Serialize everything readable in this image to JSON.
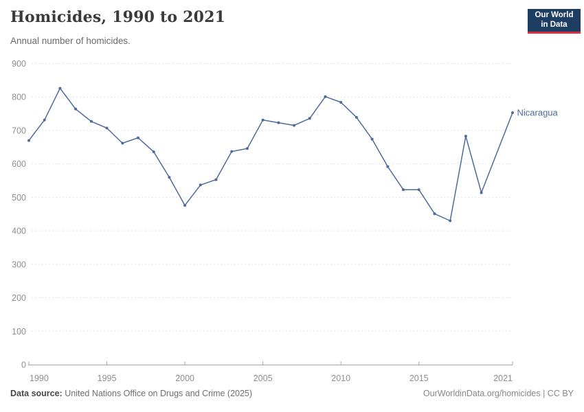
{
  "header": {
    "title": "Homicides, 1990 to 2021",
    "subtitle": "Annual number of homicides.",
    "logo": {
      "line1": "Our World",
      "line2": "in Data",
      "bg_color": "#1d3d63",
      "accent_color": "#e02c3f"
    }
  },
  "chart_data": {
    "type": "line",
    "title": "Homicides, 1990 to 2021",
    "subtitle": "Annual number of homicides.",
    "xlabel": "",
    "ylabel": "",
    "xlim": [
      1990,
      2021
    ],
    "ylim": [
      0,
      900
    ],
    "x_ticks": [
      1990,
      1995,
      2000,
      2005,
      2010,
      2015,
      2021
    ],
    "y_ticks": [
      0,
      100,
      200,
      300,
      400,
      500,
      600,
      700,
      800,
      900
    ],
    "grid": "horizontal-dashed",
    "legend_position": "end-of-line-label",
    "series": [
      {
        "name": "Nicaragua",
        "color": "#4C6A9C",
        "markers": true,
        "note": "no data for 2020; line connects 2019 to 2021",
        "points": [
          [
            1990,
            670
          ],
          [
            1991,
            731
          ],
          [
            1992,
            826
          ],
          [
            1993,
            764
          ],
          [
            1994,
            727
          ],
          [
            1995,
            707
          ],
          [
            1996,
            662
          ],
          [
            1997,
            678
          ],
          [
            1998,
            636
          ],
          [
            1999,
            560
          ],
          [
            2000,
            476
          ],
          [
            2001,
            537
          ],
          [
            2002,
            553
          ],
          [
            2003,
            637
          ],
          [
            2004,
            646
          ],
          [
            2005,
            731
          ],
          [
            2006,
            723
          ],
          [
            2007,
            715
          ],
          [
            2008,
            736
          ],
          [
            2009,
            801
          ],
          [
            2010,
            784
          ],
          [
            2011,
            739
          ],
          [
            2012,
            674
          ],
          [
            2013,
            592
          ],
          [
            2014,
            523
          ],
          [
            2015,
            523
          ],
          [
            2016,
            451
          ],
          [
            2017,
            430
          ],
          [
            2018,
            683
          ],
          [
            2019,
            514
          ],
          [
            2021,
            753
          ]
        ]
      }
    ]
  },
  "footer": {
    "datasource_label": "Data source:",
    "datasource_value": "United Nations Office on Drugs and Crime (2025)",
    "rights": "OurWorldinData.org/homicides | CC BY"
  }
}
